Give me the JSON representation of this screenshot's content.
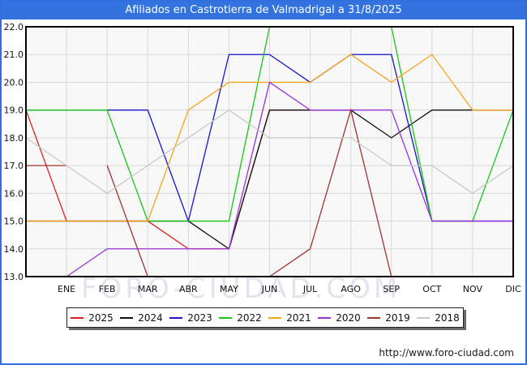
{
  "titlebar": {
    "title": "Afiliados en Castrotierra de Valmadrigal a 31/8/2025"
  },
  "watermark": "FORO-CIUDAD.COM",
  "footer": {
    "url": "http://www.foro-ciudad.com"
  },
  "chart_data": {
    "type": "line",
    "title": "Afiliados en Castrotierra de Valmadrigal a 31/8/2025",
    "categories": [
      "",
      "ENE",
      "FEB",
      "MAR",
      "ABR",
      "MAY",
      "JUN",
      "JUL",
      "AGO",
      "SEP",
      "OCT",
      "NOV",
      "DIC"
    ],
    "x_note": "first unlabeled point sits on the left axis (previous-December carry-over value)",
    "ylim": [
      13,
      22
    ],
    "yticks": [
      "22.0",
      "21.0",
      "20.0",
      "19.0",
      "18.0",
      "17.0",
      "16.0",
      "15.0",
      "14.0",
      "13.0"
    ],
    "grid": true,
    "legend_position": "bottom",
    "series": [
      {
        "name": "2025",
        "color": "#e02020",
        "values": [
          19,
          15,
          15,
          15,
          14,
          14,
          19,
          19,
          19,
          null,
          null,
          null,
          null
        ]
      },
      {
        "name": "2024",
        "color": "#101010",
        "values": [
          15,
          15,
          15,
          15,
          15,
          14,
          19,
          19,
          19,
          18,
          19,
          19,
          19
        ]
      },
      {
        "name": "2023",
        "color": "#1515cc",
        "values": [
          19,
          19,
          19,
          19,
          15,
          21,
          21,
          20,
          21,
          21,
          15,
          15,
          15
        ]
      },
      {
        "name": "2022",
        "color": "#17c617",
        "values": [
          19,
          19,
          19,
          15,
          15,
          15,
          22,
          22,
          22,
          22,
          15,
          15,
          19
        ]
      },
      {
        "name": "2021",
        "color": "#f7a51b",
        "values": [
          15,
          15,
          15,
          15,
          19,
          20,
          20,
          20,
          21,
          20,
          21,
          19,
          19
        ]
      },
      {
        "name": "2020",
        "color": "#9b30d9",
        "values": [
          13,
          13,
          14,
          14,
          14,
          14,
          20,
          19,
          19,
          19,
          15,
          15,
          15
        ]
      },
      {
        "name": "2019",
        "color": "#a03333",
        "values": [
          17,
          17,
          17,
          13,
          13,
          13,
          13,
          14,
          19,
          13,
          13,
          13,
          13
        ],
        "breaks": [
          [
            1,
            2
          ]
        ]
      },
      {
        "name": "2018",
        "color": "#c9c9c9",
        "values": [
          18,
          17,
          16,
          17,
          18,
          19,
          18,
          18,
          18,
          17,
          17,
          16,
          17
        ]
      }
    ]
  }
}
